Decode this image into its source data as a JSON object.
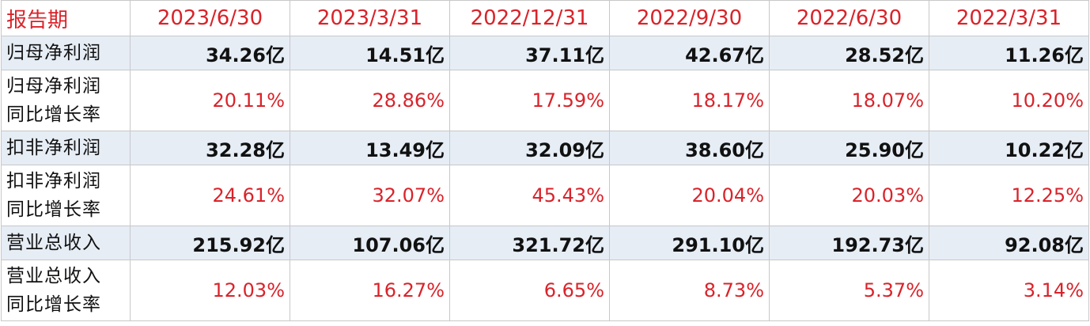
{
  "table": {
    "header": [
      "报告期",
      "2023/6/30",
      "2023/3/31",
      "2022/12/31",
      "2022/9/30",
      "2022/6/30",
      "2022/3/31"
    ],
    "rows": [
      {
        "label": [
          "归母净利润"
        ],
        "cells": [
          "34.26亿",
          "14.51亿",
          "37.11亿",
          "42.67亿",
          "28.52亿",
          "11.26亿"
        ]
      },
      {
        "label": [
          "归母净利润",
          "同比增长率"
        ],
        "cells": [
          "20.11%",
          "28.86%",
          "17.59%",
          "18.17%",
          "18.07%",
          "10.20%"
        ]
      },
      {
        "label": [
          "扣非净利润"
        ],
        "cells": [
          "32.28亿",
          "13.49亿",
          "32.09亿",
          "38.60亿",
          "25.90亿",
          "10.22亿"
        ]
      },
      {
        "label": [
          "扣非净利润",
          "同比增长率"
        ],
        "cells": [
          "24.61%",
          "32.07%",
          "45.43%",
          "20.04%",
          "20.03%",
          "12.25%"
        ]
      },
      {
        "label": [
          "营业总收入"
        ],
        "cells": [
          "215.92亿",
          "107.06亿",
          "321.72亿",
          "291.10亿",
          "192.73亿",
          "92.08亿"
        ]
      },
      {
        "label": [
          "营业总收入",
          "同比增长率"
        ],
        "cells": [
          "12.03%",
          "16.27%",
          "6.65%",
          "8.73%",
          "5.37%",
          "3.14%"
        ]
      }
    ]
  }
}
